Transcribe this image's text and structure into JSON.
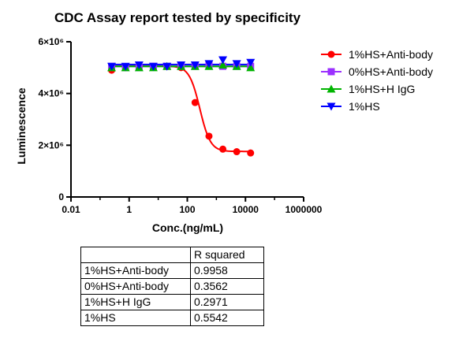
{
  "chart_data": {
    "type": "scatter",
    "title": "CDC Assay report tested by specificity",
    "xlabel": "Conc.(ng/mL)",
    "ylabel": "Luminescence",
    "x_scale": "log",
    "xlim": [
      0.01,
      1000000
    ],
    "ylim": [
      0,
      6000000
    ],
    "x_ticks": [
      "0.01",
      "1",
      "100",
      "10000",
      "1000000"
    ],
    "y_ticks": [
      "0",
      "2×10⁶",
      "4×10⁶",
      "6×10⁶"
    ],
    "legend_position": "right",
    "series": [
      {
        "name": "1%HS+Anti-body",
        "color": "#ff0000",
        "marker": "circle",
        "x": [
          0.25,
          0.75,
          2.2,
          6.8,
          20,
          61,
          185,
          556,
          1667,
          5000,
          15000
        ],
        "y": [
          4900000,
          5000000,
          5050000,
          5050000,
          5050000,
          5000000,
          3650000,
          2350000,
          1850000,
          1750000,
          1700000
        ],
        "fit": "sigmoid",
        "fit_params": {
          "top": 5060000,
          "bottom": 1760000,
          "ec50": 270,
          "hill": 2.4
        }
      },
      {
        "name": "0%HS+Anti-body",
        "color": "#9b30ff",
        "marker": "square",
        "x": [
          0.25,
          0.75,
          2.2,
          6.8,
          20,
          61,
          185,
          556,
          1667,
          5000,
          15000
        ],
        "y": [
          5050000,
          5000000,
          5000000,
          5050000,
          5050000,
          5050000,
          5050000,
          5100000,
          5050000,
          5050000,
          5050000
        ],
        "fit": "flat",
        "fit_value": 5050000
      },
      {
        "name": "1%HS+H IgG",
        "color": "#00b400",
        "marker": "triangle-up",
        "x": [
          0.25,
          0.75,
          2.2,
          6.8,
          20,
          61,
          185,
          556,
          1667,
          5000,
          15000
        ],
        "y": [
          5000000,
          5000000,
          5000000,
          5000000,
          5050000,
          5050000,
          5050000,
          5050000,
          5100000,
          5050000,
          5000000
        ],
        "fit": "flat",
        "fit_value": 5050000
      },
      {
        "name": "1%HS",
        "color": "#0000ff",
        "marker": "triangle-down",
        "x": [
          0.25,
          0.75,
          2.2,
          6.8,
          20,
          61,
          185,
          556,
          1667,
          5000,
          15000
        ],
        "y": [
          5050000,
          5050000,
          5100000,
          5050000,
          5050000,
          5100000,
          5100000,
          5150000,
          5300000,
          5150000,
          5200000
        ],
        "fit": "flat",
        "fit_value": 5120000
      }
    ]
  },
  "table": {
    "header": [
      "",
      "R squared"
    ],
    "rows": [
      {
        "label": "1%HS+Anti-body",
        "value": "0.9958"
      },
      {
        "label": "0%HS+Anti-body",
        "value": "0.3562"
      },
      {
        "label": "1%HS+H IgG",
        "value": "0.2971"
      },
      {
        "label": "1%HS",
        "value": "0.5542"
      }
    ]
  }
}
